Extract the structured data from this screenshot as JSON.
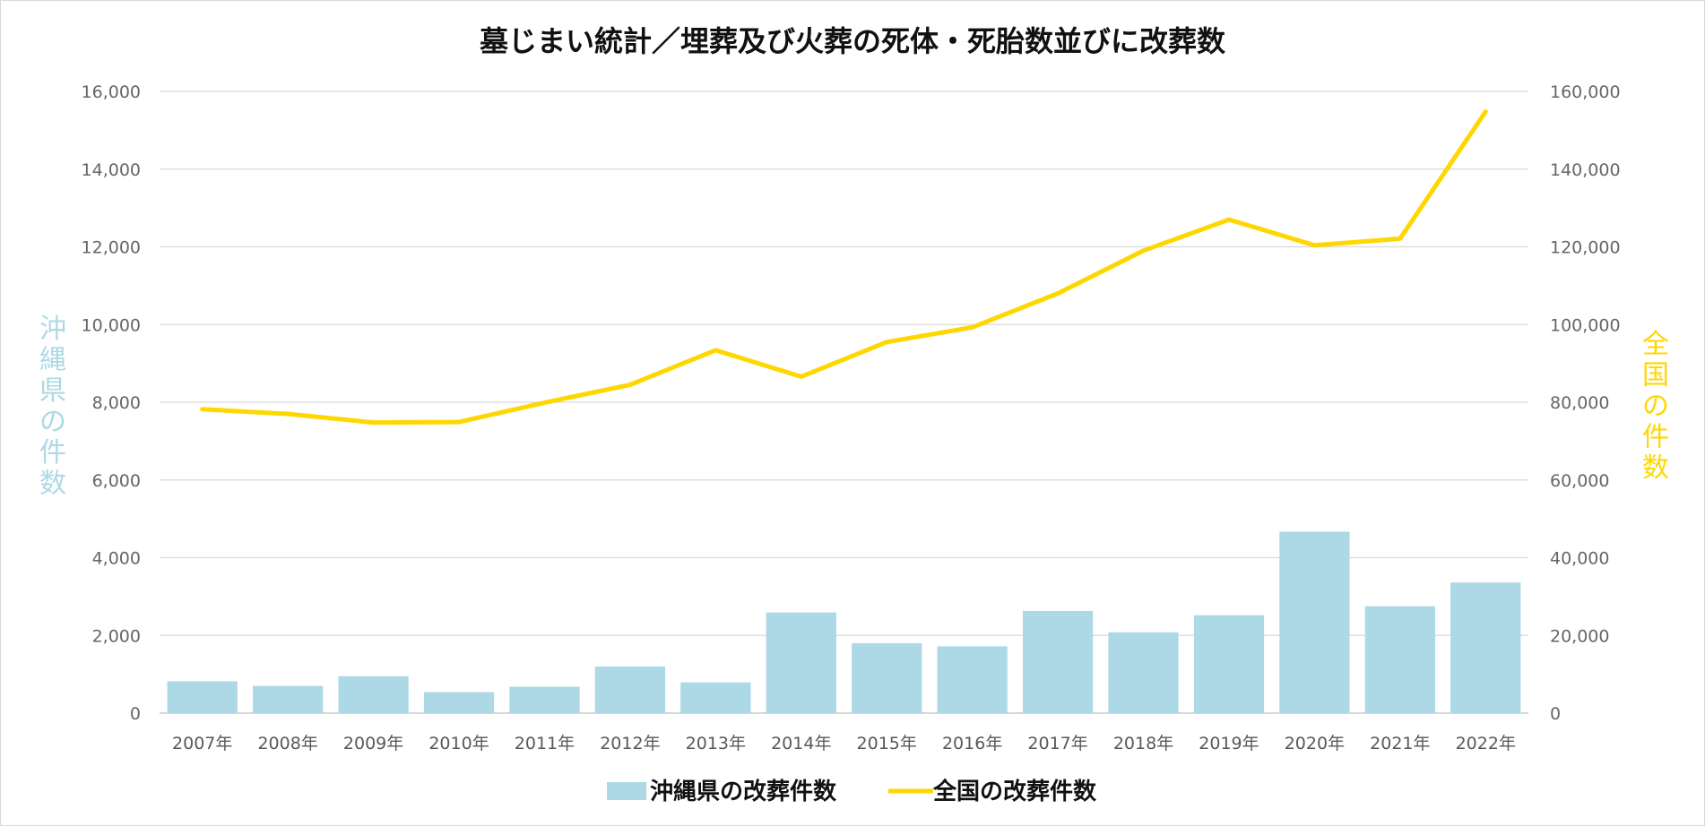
{
  "chart_data": {
    "type": "bar+line",
    "title": "墓じまい統計／埋葬及び火葬の死体・死胎数並びに改葬数",
    "categories": [
      "2007年",
      "2008年",
      "2009年",
      "2010年",
      "2011年",
      "2012年",
      "2013年",
      "2014年",
      "2015年",
      "2016年",
      "2017年",
      "2018年",
      "2019年",
      "2020年",
      "2021年",
      "2022年"
    ],
    "series": [
      {
        "name": "沖縄県の改葬件数",
        "kind": "bar",
        "axis": "left",
        "color": "#add8e6",
        "values": [
          820,
          700,
          950,
          540,
          680,
          1200,
          790,
          2590,
          1800,
          1720,
          2630,
          2080,
          2520,
          4670,
          2750,
          3360
        ]
      },
      {
        "name": "全国の改葬件数",
        "kind": "line",
        "axis": "right",
        "color": "#ffd700",
        "values": [
          78200,
          77000,
          74800,
          74900,
          79900,
          84500,
          93400,
          86600,
          95500,
          99300,
          108000,
          119000,
          127000,
          120400,
          122100,
          154800
        ]
      }
    ],
    "y_left": {
      "label": "沖縄県の件数",
      "label_color": "#add8e6",
      "range": [
        0,
        16000
      ],
      "ticks": [
        "0",
        "2,000",
        "4,000",
        "6,000",
        "8,000",
        "10,000",
        "12,000",
        "14,000",
        "16,000"
      ]
    },
    "y_right": {
      "label": "全国の件数",
      "label_color": "#ffd700",
      "range": [
        0,
        160000
      ],
      "ticks": [
        "0",
        "20,000",
        "40,000",
        "60,000",
        "80,000",
        "100,000",
        "120,000",
        "140,000",
        "160,000"
      ]
    },
    "grid": true,
    "legend_position": "bottom-center"
  }
}
